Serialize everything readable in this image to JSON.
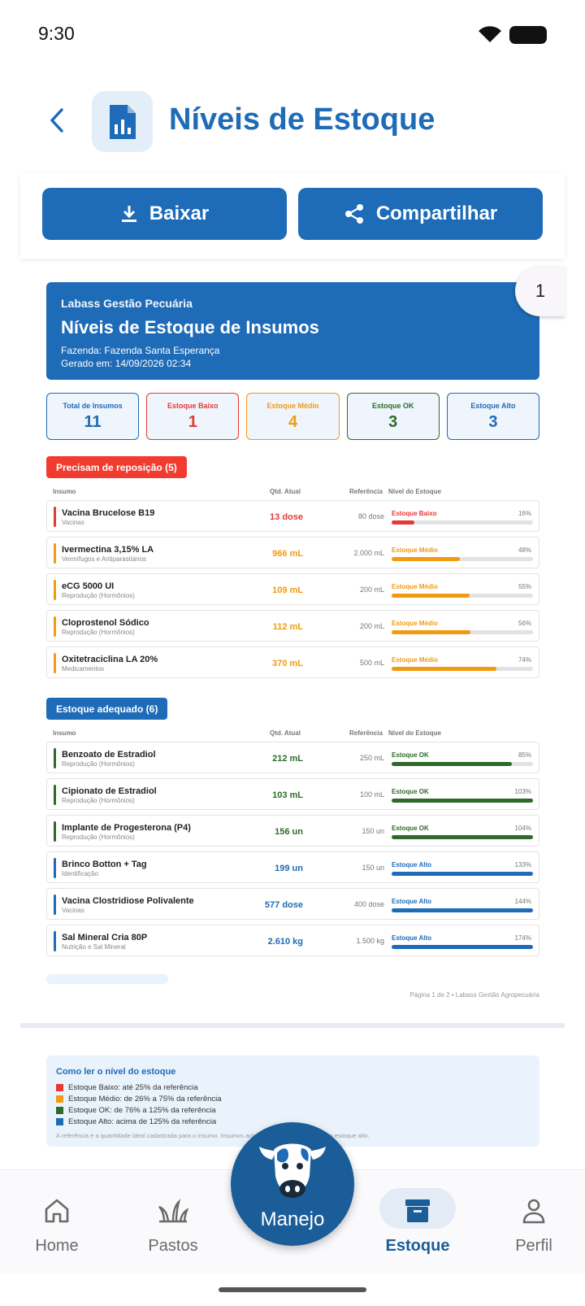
{
  "status_bar": {
    "time": "9:30"
  },
  "header": {
    "title": "Níveis de Estoque"
  },
  "actions": {
    "download_label": "Baixar",
    "share_label": "Compartilhar"
  },
  "page_badge": "1",
  "report": {
    "org": "Labass Gestão Pecuária",
    "title": "Níveis de Estoque de Insumos",
    "farm": "Fazenda: Fazenda Santa Esperança",
    "generated": "Gerado em: 14/09/2026 02:34"
  },
  "summary": [
    {
      "label": "Total de Insumos",
      "value": "11",
      "color": "#1e6bb8"
    },
    {
      "label": "Estoque Baixo",
      "value": "1",
      "color": "#e53935"
    },
    {
      "label": "Estoque Médio",
      "value": "4",
      "color": "#f29a12"
    },
    {
      "label": "Estoque OK",
      "value": "3",
      "color": "#2e6b2a"
    },
    {
      "label": "Estoque Alto",
      "value": "3",
      "color": "#1e6bb8"
    }
  ],
  "columns": {
    "insumo": "Insumo",
    "qty": "Qtd. Atual",
    "ref": "Referência",
    "level": "Nível do Estoque"
  },
  "section_restock": {
    "label": "Precisam de reposição (5)",
    "rows": [
      {
        "name": "Vacina Brucelose B19",
        "category": "Vacinas",
        "qty": "13 dose",
        "ref": "80 dose",
        "level": "Estoque Baixo",
        "pct": "16%",
        "fill": 0.16,
        "color": "#e53935"
      },
      {
        "name": "Ivermectina 3,15% LA",
        "category": "Vermífugos e Antiparasitários",
        "qty": "966 mL",
        "ref": "2.000 mL",
        "level": "Estoque Médio",
        "pct": "48%",
        "fill": 0.48,
        "color": "#f29a12"
      },
      {
        "name": "eCG 5000 UI",
        "category": "Reprodução (Hormônios)",
        "qty": "109 mL",
        "ref": "200 mL",
        "level": "Estoque Médio",
        "pct": "55%",
        "fill": 0.55,
        "color": "#f29a12"
      },
      {
        "name": "Cloprostenol Sódico",
        "category": "Reprodução (Hormônios)",
        "qty": "112 mL",
        "ref": "200 mL",
        "level": "Estoque Médio",
        "pct": "56%",
        "fill": 0.56,
        "color": "#f29a12"
      },
      {
        "name": "Oxitetraciclina LA 20%",
        "category": "Medicamentos",
        "qty": "370 mL",
        "ref": "500 mL",
        "level": "Estoque Médio",
        "pct": "74%",
        "fill": 0.74,
        "color": "#f29a12"
      }
    ]
  },
  "section_adequate": {
    "label": "Estoque adequado (6)",
    "rows": [
      {
        "name": "Benzoato de Estradiol",
        "category": "Reprodução (Hormônios)",
        "qty": "212 mL",
        "ref": "250 mL",
        "level": "Estoque OK",
        "pct": "85%",
        "fill": 0.85,
        "color": "#2e6b2a"
      },
      {
        "name": "Cipionato de Estradiol",
        "category": "Reprodução (Hormônios)",
        "qty": "103 mL",
        "ref": "100 mL",
        "level": "Estoque OK",
        "pct": "103%",
        "fill": 1.0,
        "color": "#2e6b2a"
      },
      {
        "name": "Implante de Progesterona (P4)",
        "category": "Reprodução (Hormônios)",
        "qty": "156 un",
        "ref": "150 un",
        "level": "Estoque OK",
        "pct": "104%",
        "fill": 1.0,
        "color": "#2e6b2a"
      },
      {
        "name": "Brinco Botton + Tag",
        "category": "Identificação",
        "qty": "199 un",
        "ref": "150 un",
        "level": "Estoque Alto",
        "pct": "133%",
        "fill": 1.0,
        "color": "#1e6bb8"
      },
      {
        "name": "Vacina Clostridiose Polivalente",
        "category": "Vacinas",
        "qty": "577 dose",
        "ref": "400 dose",
        "level": "Estoque Alto",
        "pct": "144%",
        "fill": 1.0,
        "color": "#1e6bb8"
      },
      {
        "name": "Sal Mineral Cria 80P",
        "category": "Nutrição e Sal Mineral",
        "qty": "2.610 kg",
        "ref": "1.500 kg",
        "level": "Estoque Alto",
        "pct": "174%",
        "fill": 1.0,
        "color": "#1e6bb8"
      }
    ]
  },
  "page_footer": "Página 1 de 2  •  Labass Gestão Agropecuária",
  "legend": {
    "title": "Como ler o nível do estoque",
    "items": [
      {
        "text": "Estoque Baixo: até 25% da referência",
        "color": "#e53935"
      },
      {
        "text": "Estoque Médio: de 26% a 75% da referência",
        "color": "#f29a12"
      },
      {
        "text": "Estoque OK: de 76% a 125% da referência",
        "color": "#2e6b2a"
      },
      {
        "text": "Estoque Alto: acima de 125% da referência",
        "color": "#1e6bb8"
      }
    ],
    "note": "A referência é a quantidade ideal cadastrada para o insumo. Insumos acima de 125% aparecem como estoque alto."
  },
  "nav": {
    "home": "Home",
    "pastos": "Pastos",
    "manejo": "Manejo",
    "estoque": "Estoque",
    "perfil": "Perfil"
  }
}
